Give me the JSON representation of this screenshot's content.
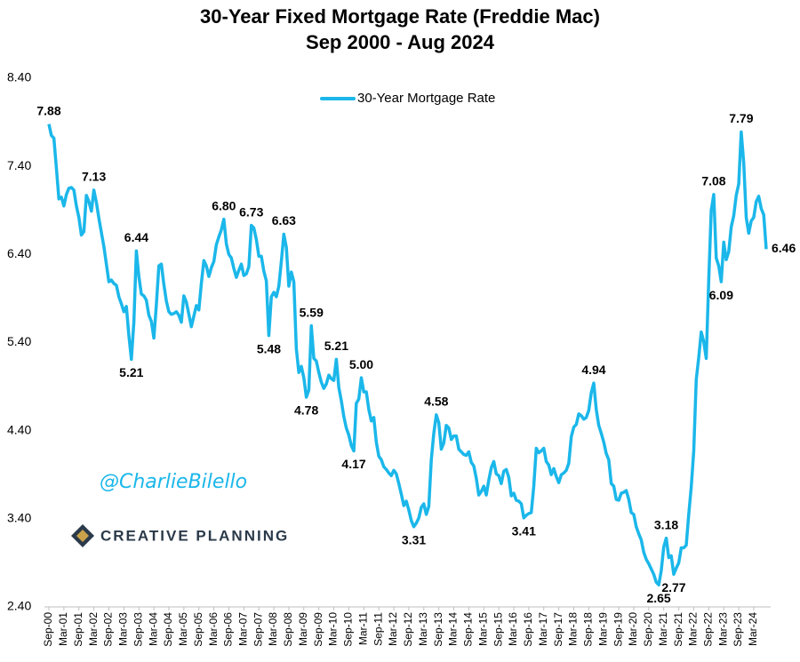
{
  "chart_data": {
    "type": "line",
    "title": "30-Year Fixed Mortgage Rate (Freddie Mac)",
    "subtitle": "Sep 2000 - Aug 2024",
    "watermark": "@CharlieBilello",
    "logo": "CREATIVE PLANNING",
    "legend": "top",
    "grid": false,
    "ylim": [
      2.4,
      8.4
    ],
    "yticks": [
      {
        "value": 2.4,
        "label": "2.40"
      },
      {
        "value": 3.4,
        "label": "3.40"
      },
      {
        "value": 4.4,
        "label": "4.40"
      },
      {
        "value": 5.4,
        "label": "5.40"
      },
      {
        "value": 6.4,
        "label": "6.40"
      },
      {
        "value": 7.4,
        "label": "7.40"
      },
      {
        "value": 8.4,
        "label": "8.40"
      }
    ],
    "categories": [
      "Sep-00",
      null,
      null,
      null,
      null,
      null,
      "Mar-01",
      null,
      null,
      null,
      null,
      null,
      "Sep-01",
      null,
      null,
      null,
      null,
      null,
      "Mar-02",
      null,
      null,
      null,
      null,
      null,
      "Sep-02",
      null,
      null,
      null,
      null,
      null,
      "Mar-03",
      null,
      null,
      null,
      null,
      null,
      "Sep-03",
      null,
      null,
      null,
      null,
      null,
      "Mar-04",
      null,
      null,
      null,
      null,
      null,
      "Sep-04",
      null,
      null,
      null,
      null,
      null,
      "Mar-05",
      null,
      null,
      null,
      null,
      null,
      "Sep-05",
      null,
      null,
      null,
      null,
      null,
      "Mar-06",
      null,
      null,
      null,
      null,
      null,
      "Sep-06",
      null,
      null,
      null,
      null,
      null,
      "Mar-07",
      null,
      null,
      null,
      null,
      null,
      "Sep-07",
      null,
      null,
      null,
      null,
      null,
      "Mar-08",
      null,
      null,
      null,
      null,
      null,
      "Sep-08",
      null,
      null,
      null,
      null,
      null,
      "Mar-09",
      null,
      null,
      null,
      null,
      null,
      "Sep-09",
      null,
      null,
      null,
      null,
      null,
      "Mar-10",
      null,
      null,
      null,
      null,
      null,
      "Sep-10",
      null,
      null,
      null,
      null,
      null,
      "Mar-11",
      null,
      null,
      null,
      null,
      null,
      "Sep-11",
      null,
      null,
      null,
      null,
      null,
      "Mar-12",
      null,
      null,
      null,
      null,
      null,
      "Sep-12",
      null,
      null,
      null,
      null,
      null,
      "Mar-13",
      null,
      null,
      null,
      null,
      null,
      "Sep-13",
      null,
      null,
      null,
      null,
      null,
      "Mar-14",
      null,
      null,
      null,
      null,
      null,
      "Sep-14",
      null,
      null,
      null,
      null,
      null,
      "Mar-15",
      null,
      null,
      null,
      null,
      null,
      "Sep-15",
      null,
      null,
      null,
      null,
      null,
      "Mar-16",
      null,
      null,
      null,
      null,
      null,
      "Sep-16",
      null,
      null,
      null,
      null,
      null,
      "Mar-17",
      null,
      null,
      null,
      null,
      null,
      "Sep-17",
      null,
      null,
      null,
      null,
      null,
      "Mar-18",
      null,
      null,
      null,
      null,
      null,
      "Sep-18",
      null,
      null,
      null,
      null,
      null,
      "Mar-19",
      null,
      null,
      null,
      null,
      null,
      "Sep-19",
      null,
      null,
      null,
      null,
      null,
      "Mar-20",
      null,
      null,
      null,
      null,
      null,
      "Sep-20",
      null,
      null,
      null,
      null,
      null,
      "Mar-21",
      null,
      null,
      null,
      null,
      null,
      "Sep-21",
      null,
      null,
      null,
      null,
      null,
      "Mar-22",
      null,
      null,
      null,
      null,
      null,
      "Sep-22",
      null,
      null,
      null,
      null,
      null,
      "Mar-23",
      null,
      null,
      null,
      null,
      null,
      "Sep-23",
      null,
      null,
      null,
      null,
      null,
      "Mar-24",
      null,
      null,
      null,
      null,
      null
    ],
    "series": [
      {
        "name": "30-Year Mortgage Rate",
        "color": "#1bb7ea",
        "values": [
          7.88,
          7.75,
          7.72,
          7.38,
          7.03,
          7.05,
          6.95,
          7.08,
          7.15,
          7.16,
          7.13,
          6.95,
          6.82,
          6.62,
          6.66,
          7.07,
          7.0,
          6.89,
          7.13,
          6.99,
          6.81,
          6.65,
          6.49,
          6.29,
          6.09,
          6.11,
          6.07,
          6.05,
          5.92,
          5.84,
          5.75,
          5.81,
          5.48,
          5.21,
          5.63,
          6.44,
          6.15,
          5.95,
          5.93,
          5.88,
          5.71,
          5.64,
          5.45,
          5.83,
          6.27,
          6.29,
          6.06,
          5.87,
          5.75,
          5.72,
          5.73,
          5.75,
          5.71,
          5.63,
          5.93,
          5.86,
          5.72,
          5.58,
          5.7,
          5.82,
          5.77,
          6.07,
          6.33,
          6.27,
          6.15,
          6.25,
          6.32,
          6.51,
          6.6,
          6.68,
          6.8,
          6.52,
          6.4,
          6.36,
          6.24,
          6.14,
          6.22,
          6.29,
          6.16,
          6.18,
          6.26,
          6.73,
          6.7,
          6.57,
          6.38,
          6.38,
          6.21,
          6.1,
          5.48,
          5.92,
          5.97,
          5.92,
          6.04,
          6.32,
          6.63,
          6.48,
          6.04,
          6.2,
          6.09,
          5.33,
          5.06,
          5.13,
          5.0,
          4.78,
          4.86,
          5.59,
          5.22,
          5.19,
          5.06,
          4.95,
          4.88,
          4.93,
          5.03,
          4.99,
          4.97,
          5.21,
          4.89,
          4.74,
          4.56,
          4.43,
          4.35,
          4.23,
          4.17,
          4.71,
          4.76,
          5.0,
          4.84,
          4.84,
          4.64,
          4.51,
          4.55,
          4.27,
          4.11,
          4.07,
          3.99,
          3.96,
          3.92,
          3.89,
          3.95,
          3.91,
          3.8,
          3.68,
          3.55,
          3.6,
          3.5,
          3.38,
          3.31,
          3.35,
          3.41,
          3.53,
          3.57,
          3.45,
          3.54,
          4.07,
          4.37,
          4.58,
          4.49,
          4.19,
          4.26,
          4.46,
          4.43,
          4.3,
          4.34,
          4.34,
          4.19,
          4.16,
          4.13,
          4.12,
          4.16,
          4.04,
          4.0,
          3.86,
          3.67,
          3.71,
          3.77,
          3.67,
          3.84,
          3.98,
          4.05,
          3.91,
          3.89,
          3.8,
          3.94,
          3.96,
          3.87,
          3.66,
          3.69,
          3.61,
          3.6,
          3.57,
          3.41,
          3.44,
          3.46,
          3.47,
          3.77,
          4.2,
          4.15,
          4.17,
          4.2,
          4.05,
          4.01,
          3.9,
          3.97,
          3.88,
          3.81,
          3.9,
          3.92,
          3.95,
          4.03,
          4.33,
          4.44,
          4.47,
          4.59,
          4.57,
          4.53,
          4.55,
          4.63,
          4.83,
          4.94,
          4.64,
          4.46,
          4.37,
          4.27,
          4.14,
          4.07,
          3.8,
          3.77,
          3.62,
          3.61,
          3.69,
          3.7,
          3.72,
          3.62,
          3.47,
          3.45,
          3.31,
          3.23,
          3.16,
          3.02,
          2.94,
          2.89,
          2.83,
          2.77,
          2.68,
          2.65,
          2.81,
          3.08,
          3.18,
          2.96,
          2.98,
          2.77,
          2.84,
          2.9,
          3.07,
          3.07,
          3.1,
          3.45,
          3.76,
          4.17,
          4.98,
          5.23,
          5.52,
          5.41,
          5.22,
          6.11,
          6.9,
          7.08,
          6.36,
          6.27,
          6.09,
          6.54,
          6.34,
          6.43,
          6.71,
          6.84,
          7.07,
          7.2,
          7.79,
          7.44,
          6.82,
          6.64,
          6.78,
          6.82,
          7.0,
          7.06,
          6.92,
          6.85,
          6.46
        ]
      }
    ],
    "value_labels": [
      "7.88",
      null,
      null,
      null,
      null,
      null,
      null,
      null,
      null,
      null,
      null,
      null,
      null,
      null,
      null,
      null,
      null,
      null,
      "7.13",
      null,
      null,
      null,
      null,
      null,
      null,
      null,
      null,
      null,
      null,
      null,
      null,
      null,
      null,
      "5.21",
      null,
      "6.44",
      null,
      null,
      null,
      null,
      null,
      null,
      null,
      null,
      null,
      null,
      null,
      null,
      null,
      null,
      null,
      null,
      null,
      null,
      null,
      null,
      null,
      null,
      null,
      null,
      null,
      null,
      null,
      null,
      null,
      null,
      null,
      null,
      null,
      null,
      "6.80",
      null,
      null,
      null,
      null,
      null,
      null,
      null,
      null,
      null,
      null,
      "6.73",
      null,
      null,
      null,
      null,
      null,
      null,
      "5.48",
      null,
      null,
      null,
      null,
      null,
      "6.63",
      null,
      null,
      null,
      null,
      null,
      null,
      null,
      null,
      "4.78",
      null,
      "5.59",
      null,
      null,
      null,
      null,
      null,
      null,
      null,
      null,
      null,
      "5.21",
      null,
      null,
      null,
      null,
      null,
      null,
      "4.17",
      null,
      null,
      "5.00",
      null,
      null,
      null,
      null,
      null,
      null,
      null,
      null,
      null,
      null,
      null,
      null,
      null,
      null,
      null,
      null,
      null,
      null,
      null,
      null,
      "3.31",
      null,
      null,
      null,
      null,
      null,
      null,
      null,
      null,
      "4.58",
      null,
      null,
      null,
      null,
      null,
      null,
      null,
      null,
      null,
      null,
      null,
      null,
      null,
      null,
      null,
      null,
      null,
      null,
      null,
      null,
      null,
      null,
      null,
      null,
      null,
      null,
      null,
      null,
      null,
      null,
      null,
      null,
      null,
      null,
      "3.41",
      null,
      null,
      null,
      null,
      null,
      null,
      null,
      null,
      null,
      null,
      null,
      null,
      null,
      null,
      null,
      null,
      null,
      null,
      null,
      null,
      null,
      null,
      null,
      null,
      null,
      null,
      null,
      "4.94",
      null,
      null,
      null,
      null,
      null,
      null,
      null,
      null,
      null,
      null,
      null,
      null,
      null,
      null,
      null,
      null,
      null,
      null,
      null,
      null,
      null,
      null,
      null,
      null,
      null,
      "2.65",
      null,
      null,
      "3.18",
      null,
      null,
      "2.77",
      null,
      null,
      null,
      null,
      null,
      null,
      null,
      null,
      null,
      null,
      null,
      null,
      null,
      null,
      null,
      "7.08",
      null,
      null,
      "6.09",
      null,
      null,
      null,
      null,
      null,
      null,
      null,
      "7.79",
      null,
      null,
      null,
      null,
      null,
      null,
      null,
      null,
      null,
      "6.46"
    ]
  }
}
